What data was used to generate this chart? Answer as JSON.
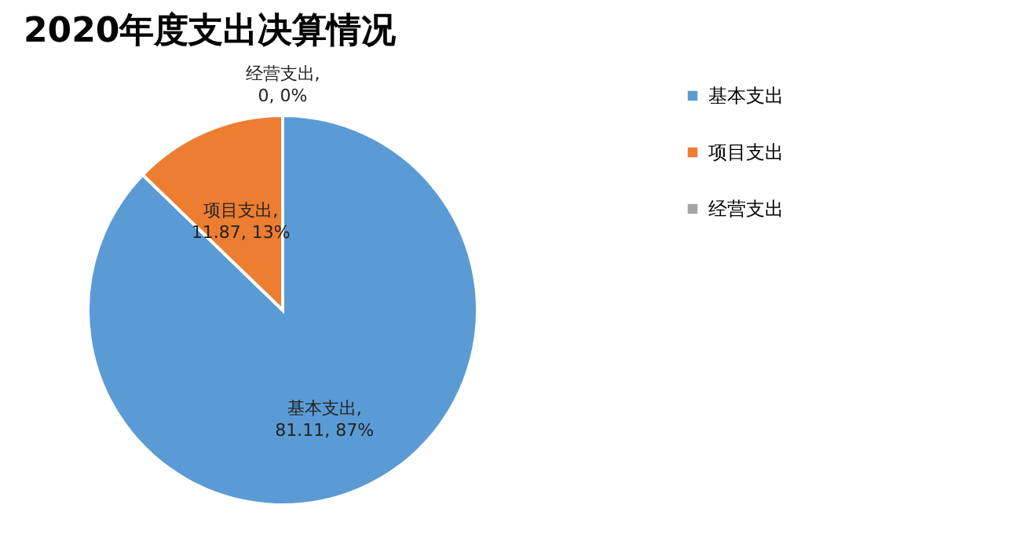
{
  "chart_data": {
    "type": "pie",
    "title": "2020年度支出决算情况",
    "categories": [
      "基本支出",
      "项目支出",
      "经营支出"
    ],
    "values": [
      81.11,
      11.87,
      0
    ],
    "value_labels": [
      "基本支出, 81.11, 87%",
      "项目支出, 11.87, 13%",
      "经营支出, 0, 0%"
    ],
    "colors": [
      "#5b9bd5",
      "#ed7d31",
      "#a5a5a5"
    ],
    "legend": "right"
  }
}
